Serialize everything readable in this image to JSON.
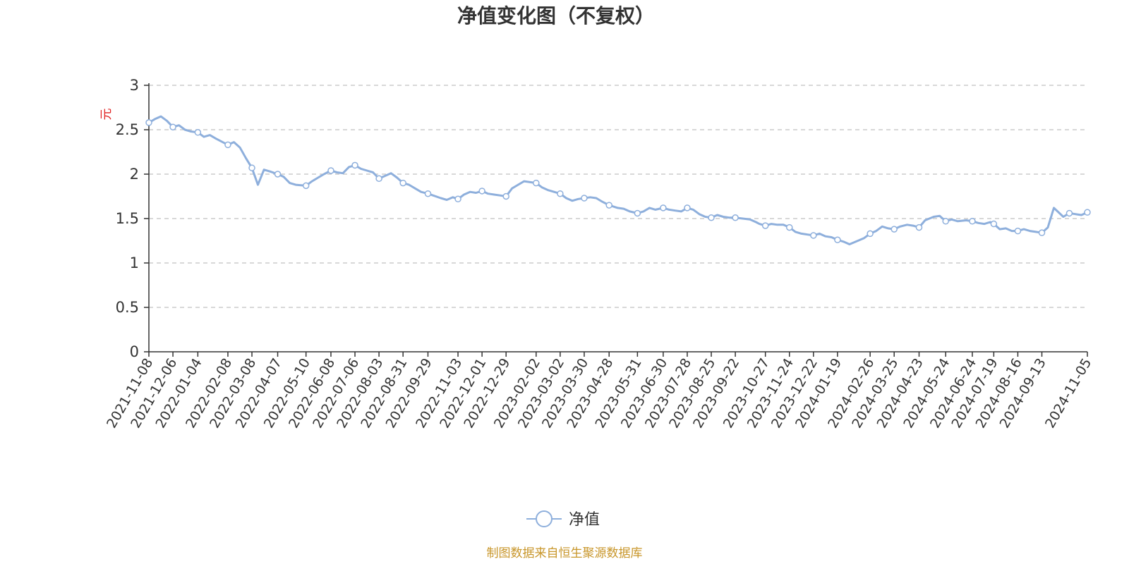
{
  "chart_data": {
    "type": "line",
    "title": "净值变化图（不复权）",
    "ylabel": "元",
    "ylim": [
      0,
      3
    ],
    "yticks": [
      "0",
      "0.5",
      "1",
      "1.5",
      "2",
      "2.5",
      "3"
    ],
    "grid": true,
    "legend_position": "bottom-center",
    "xticks": [
      "2021-11-08",
      "2021-12-06",
      "2022-01-04",
      "2022-02-08",
      "2022-03-08",
      "2022-04-07",
      "2022-05-10",
      "2022-06-08",
      "2022-07-06",
      "2022-08-03",
      "2022-08-31",
      "2022-09-29",
      "2022-11-03",
      "2022-12-01",
      "2022-12-29",
      "2023-02-02",
      "2023-03-02",
      "2023-03-30",
      "2023-04-28",
      "2023-05-31",
      "2023-06-30",
      "2023-07-28",
      "2023-08-25",
      "2023-09-22",
      "2023-10-27",
      "2023-11-24",
      "2023-12-22",
      "2024-01-19",
      "2024-02-26",
      "2024-03-25",
      "2024-04-23",
      "2024-05-24",
      "2024-06-24",
      "2024-07-19",
      "2024-08-16",
      "2024-09-13",
      "2024-11-05"
    ],
    "series": [
      {
        "name": "净值",
        "color": "#8eafdc",
        "x": [
          "2021-11-08",
          "2021-11-15",
          "2021-11-22",
          "2021-11-29",
          "2021-12-06",
          "2021-12-13",
          "2021-12-20",
          "2021-12-27",
          "2022-01-04",
          "2022-01-11",
          "2022-01-18",
          "2022-01-25",
          "2022-02-08",
          "2022-02-15",
          "2022-02-22",
          "2022-03-01",
          "2022-03-08",
          "2022-03-15",
          "2022-03-22",
          "2022-03-29",
          "2022-04-07",
          "2022-04-14",
          "2022-04-21",
          "2022-04-28",
          "2022-05-10",
          "2022-05-17",
          "2022-05-24",
          "2022-05-31",
          "2022-06-08",
          "2022-06-15",
          "2022-06-22",
          "2022-06-29",
          "2022-07-06",
          "2022-07-13",
          "2022-07-20",
          "2022-07-27",
          "2022-08-03",
          "2022-08-10",
          "2022-08-17",
          "2022-08-24",
          "2022-08-31",
          "2022-09-07",
          "2022-09-14",
          "2022-09-21",
          "2022-09-29",
          "2022-10-14",
          "2022-10-21",
          "2022-10-28",
          "2022-11-03",
          "2022-11-10",
          "2022-11-17",
          "2022-11-24",
          "2022-12-01",
          "2022-12-08",
          "2022-12-15",
          "2022-12-22",
          "2022-12-29",
          "2023-01-05",
          "2023-01-12",
          "2023-01-19",
          "2023-02-02",
          "2023-02-09",
          "2023-02-16",
          "2023-02-23",
          "2023-03-02",
          "2023-03-09",
          "2023-03-16",
          "2023-03-23",
          "2023-03-30",
          "2023-04-06",
          "2023-04-13",
          "2023-04-20",
          "2023-04-28",
          "2023-05-08",
          "2023-05-15",
          "2023-05-22",
          "2023-05-31",
          "2023-06-07",
          "2023-06-14",
          "2023-06-21",
          "2023-06-30",
          "2023-07-07",
          "2023-07-14",
          "2023-07-21",
          "2023-07-28",
          "2023-08-04",
          "2023-08-11",
          "2023-08-18",
          "2023-08-25",
          "2023-09-01",
          "2023-09-08",
          "2023-09-15",
          "2023-09-22",
          "2023-10-09",
          "2023-10-16",
          "2023-10-20",
          "2023-10-27",
          "2023-11-03",
          "2023-11-10",
          "2023-11-17",
          "2023-11-24",
          "2023-12-01",
          "2023-12-08",
          "2023-12-15",
          "2023-12-22",
          "2023-12-29",
          "2024-01-05",
          "2024-01-12",
          "2024-01-19",
          "2024-01-26",
          "2024-02-02",
          "2024-02-19",
          "2024-02-26",
          "2024-03-04",
          "2024-03-11",
          "2024-03-18",
          "2024-03-25",
          "2024-04-01",
          "2024-04-09",
          "2024-04-16",
          "2024-04-23",
          "2024-04-30",
          "2024-05-10",
          "2024-05-17",
          "2024-05-24",
          "2024-05-31",
          "2024-06-07",
          "2024-06-17",
          "2024-06-24",
          "2024-07-01",
          "2024-07-08",
          "2024-07-15",
          "2024-07-19",
          "2024-07-26",
          "2024-08-02",
          "2024-08-09",
          "2024-08-16",
          "2024-08-23",
          "2024-08-30",
          "2024-09-06",
          "2024-09-13",
          "2024-09-20",
          "2024-09-27",
          "2024-10-08",
          "2024-10-15",
          "2024-10-22",
          "2024-10-29",
          "2024-11-05"
        ],
        "y": [
          2.58,
          2.62,
          2.65,
          2.6,
          2.53,
          2.55,
          2.5,
          2.48,
          2.47,
          2.42,
          2.44,
          2.4,
          2.33,
          2.36,
          2.3,
          2.18,
          2.07,
          1.88,
          2.05,
          2.03,
          2.0,
          1.97,
          1.9,
          1.88,
          1.87,
          1.92,
          1.96,
          2.0,
          2.04,
          2.02,
          2.01,
          2.08,
          2.1,
          2.06,
          2.04,
          2.02,
          1.95,
          1.98,
          2.01,
          1.96,
          1.9,
          1.88,
          1.84,
          1.8,
          1.78,
          1.73,
          1.71,
          1.74,
          1.72,
          1.77,
          1.8,
          1.79,
          1.81,
          1.78,
          1.77,
          1.76,
          1.75,
          1.84,
          1.88,
          1.92,
          1.9,
          1.85,
          1.82,
          1.8,
          1.78,
          1.73,
          1.7,
          1.72,
          1.73,
          1.74,
          1.73,
          1.69,
          1.65,
          1.62,
          1.61,
          1.58,
          1.56,
          1.58,
          1.62,
          1.6,
          1.62,
          1.6,
          1.59,
          1.58,
          1.62,
          1.6,
          1.55,
          1.52,
          1.51,
          1.54,
          1.52,
          1.51,
          1.51,
          1.49,
          1.46,
          1.44,
          1.42,
          1.44,
          1.43,
          1.43,
          1.4,
          1.35,
          1.33,
          1.32,
          1.31,
          1.33,
          1.3,
          1.29,
          1.26,
          1.24,
          1.21,
          1.28,
          1.33,
          1.36,
          1.41,
          1.39,
          1.38,
          1.41,
          1.43,
          1.42,
          1.4,
          1.48,
          1.52,
          1.53,
          1.47,
          1.49,
          1.47,
          1.48,
          1.47,
          1.45,
          1.44,
          1.46,
          1.44,
          1.38,
          1.39,
          1.36,
          1.36,
          1.38,
          1.36,
          1.35,
          1.34,
          1.4,
          1.62,
          1.52,
          1.56,
          1.55,
          1.54,
          1.57
        ],
        "markers_at": [
          "2021-11-08",
          "2021-12-06",
          "2022-01-04",
          "2022-02-08",
          "2022-03-08",
          "2022-04-07",
          "2022-05-10",
          "2022-06-08",
          "2022-07-06",
          "2022-08-03",
          "2022-08-31",
          "2022-09-29",
          "2022-11-03",
          "2022-12-01",
          "2022-12-29",
          "2023-02-02",
          "2023-03-02",
          "2023-03-30",
          "2023-04-28",
          "2023-05-31",
          "2023-06-30",
          "2023-07-28",
          "2023-08-25",
          "2023-09-22",
          "2023-10-27",
          "2023-11-24",
          "2023-12-22",
          "2024-01-19",
          "2024-02-26",
          "2024-03-25",
          "2024-04-23",
          "2024-05-24",
          "2024-06-24",
          "2024-07-19",
          "2024-08-16",
          "2024-09-13",
          "2024-10-15",
          "2024-11-05"
        ]
      }
    ]
  },
  "footer": {
    "source": "制图数据来自恒生聚源数据库"
  }
}
